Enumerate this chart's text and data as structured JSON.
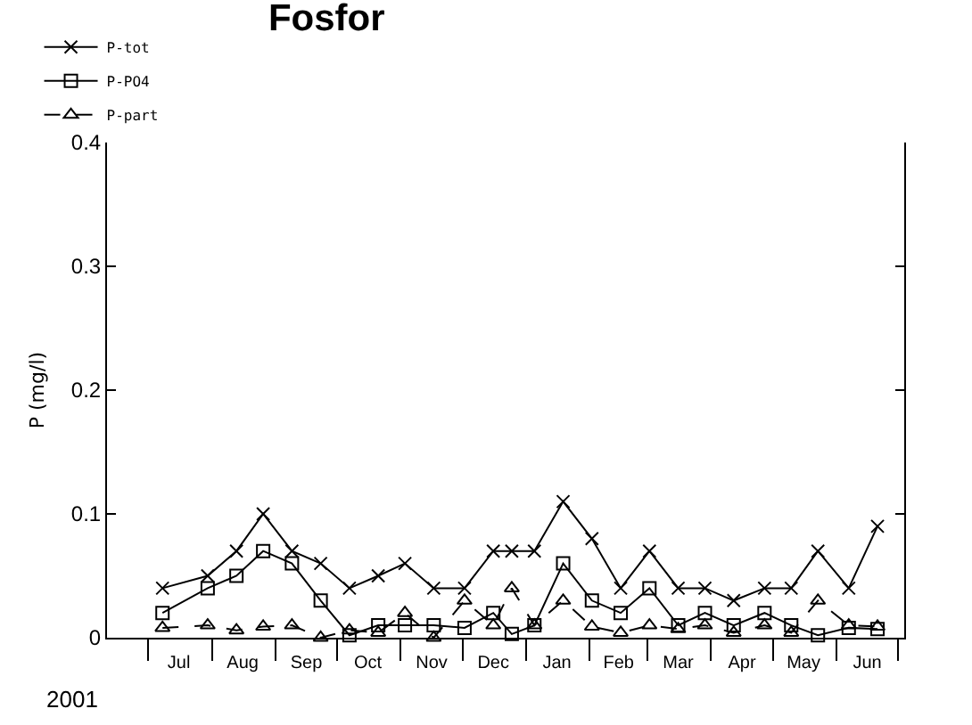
{
  "chart_data": {
    "type": "line",
    "title": "Fosfor",
    "ylabel": "P (mg/l)",
    "annotations": [
      "2001"
    ],
    "x": [
      "2001-07-08",
      "2001-07-30",
      "2001-08-13",
      "2001-08-26",
      "2001-09-09",
      "2001-09-23",
      "2001-10-07",
      "2001-10-21",
      "2001-11-03",
      "2001-11-17",
      "2001-12-02",
      "2001-12-16",
      "2001-12-25",
      "2002-01-05",
      "2002-01-19",
      "2002-02-02",
      "2002-02-16",
      "2002-03-02",
      "2002-03-16",
      "2002-03-29",
      "2002-04-12",
      "2002-04-27",
      "2002-05-10",
      "2002-05-23",
      "2002-06-07",
      "2002-06-21"
    ],
    "xlim": [
      "2001-06-11",
      "2002-07-04"
    ],
    "xticks": [
      {
        "value": "2001-07-01",
        "label": null
      },
      {
        "value": "2001-07-16",
        "label": "Jul"
      },
      {
        "value": "2001-08-01",
        "label": null
      },
      {
        "value": "2001-08-16",
        "label": "Aug"
      },
      {
        "value": "2001-09-01",
        "label": null
      },
      {
        "value": "2001-09-16",
        "label": "Sep"
      },
      {
        "value": "2001-10-01",
        "label": null
      },
      {
        "value": "2001-10-16",
        "label": "Oct"
      },
      {
        "value": "2001-11-01",
        "label": null
      },
      {
        "value": "2001-11-16",
        "label": "Nov"
      },
      {
        "value": "2001-12-01",
        "label": null
      },
      {
        "value": "2001-12-16",
        "label": "Dec"
      },
      {
        "value": "2002-01-01",
        "label": null
      },
      {
        "value": "2002-01-16",
        "label": "Jan"
      },
      {
        "value": "2002-02-01",
        "label": null
      },
      {
        "value": "2002-02-15",
        "label": "Feb"
      },
      {
        "value": "2002-03-01",
        "label": null
      },
      {
        "value": "2002-03-16",
        "label": "Mar"
      },
      {
        "value": "2002-04-01",
        "label": null
      },
      {
        "value": "2002-04-16",
        "label": "Apr"
      },
      {
        "value": "2002-05-01",
        "label": null
      },
      {
        "value": "2002-05-16",
        "label": "May"
      },
      {
        "value": "2002-06-01",
        "label": null
      },
      {
        "value": "2002-06-16",
        "label": "Jun"
      },
      {
        "value": "2002-07-01",
        "label": null
      }
    ],
    "ylim": [
      0,
      0.4
    ],
    "yticks": [
      0,
      0.1,
      0.2,
      0.3,
      0.4
    ],
    "legend": "top left",
    "series": [
      {
        "name": "P-tot",
        "color": "#000000",
        "marker": "cross",
        "line_style": "solid",
        "values": [
          0.04,
          0.05,
          0.07,
          0.1,
          0.07,
          0.06,
          0.04,
          0.05,
          0.06,
          0.04,
          0.04,
          0.07,
          0.07,
          0.07,
          0.11,
          0.08,
          0.04,
          0.07,
          0.04,
          0.04,
          0.03,
          0.04,
          0.04,
          0.07,
          0.04,
          0.09
        ]
      },
      {
        "name": "P-PO4",
        "color": "#000000",
        "marker": "square",
        "line_style": "solid",
        "values": [
          0.02,
          0.04,
          0.05,
          0.07,
          0.06,
          0.03,
          0.002,
          0.01,
          0.01,
          0.01,
          0.008,
          0.02,
          0.003,
          0.01,
          0.06,
          0.03,
          0.02,
          0.04,
          0.01,
          0.02,
          0.01,
          0.02,
          0.01,
          0.002,
          0.008,
          0.007
        ]
      },
      {
        "name": "P-part",
        "color": "#000000",
        "marker": "triangle",
        "line_style": "dashed",
        "values": [
          0.008,
          0.01,
          0.006,
          0.009,
          0.01,
          0,
          0.006,
          0.004,
          0.02,
          0,
          0.03,
          0.01,
          0.04,
          0.01,
          0.03,
          0.009,
          0.004,
          0.01,
          0.007,
          0.01,
          0.004,
          0.01,
          0.004,
          0.03,
          0.01,
          0.009
        ]
      }
    ]
  }
}
